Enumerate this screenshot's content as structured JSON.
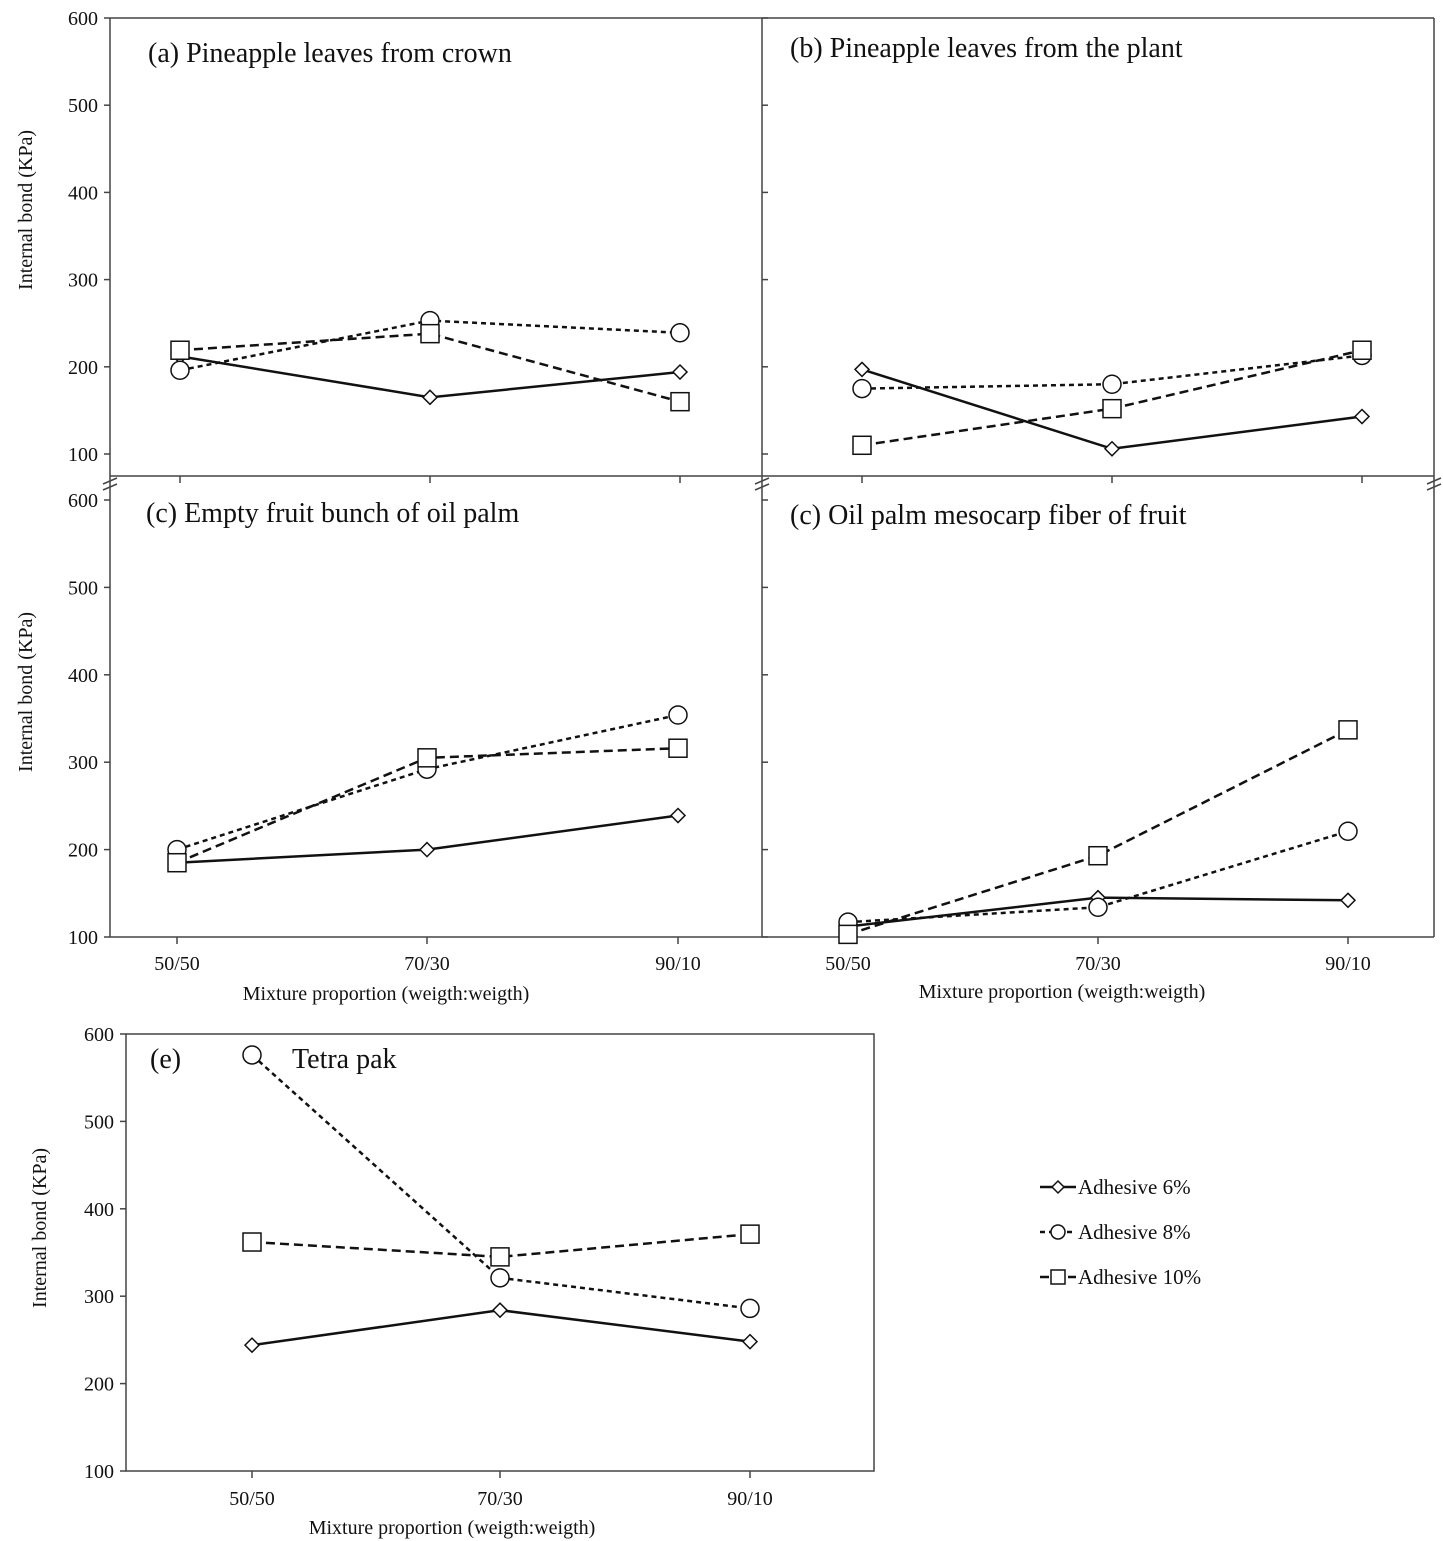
{
  "chart_data": [
    {
      "type": "line",
      "title": "(a) Pineapple leaves from crown",
      "ylabel": "Internal bond (KPa)",
      "xlabel": "",
      "categories": [
        "50/50",
        "70/30",
        "90/10"
      ],
      "ylim": [
        100,
        600
      ],
      "yticks": [
        "100",
        "200",
        "300",
        "400",
        "500",
        "600"
      ],
      "series": [
        {
          "name": "Adhesive 6%",
          "values": [
            212,
            165,
            194
          ]
        },
        {
          "name": "Adhesive 8%",
          "values": [
            196,
            253,
            239
          ]
        },
        {
          "name": "Adhesive 10%",
          "values": [
            219,
            238,
            160
          ]
        }
      ]
    },
    {
      "type": "line",
      "title": "(b) Pineapple leaves from the plant",
      "ylabel": "",
      "xlabel": "",
      "categories": [
        "50/50",
        "70/30",
        "90/10"
      ],
      "ylim": [
        100,
        600
      ],
      "yticks": [],
      "series": [
        {
          "name": "Adhesive 6%",
          "values": [
            197,
            106,
            143
          ]
        },
        {
          "name": "Adhesive 8%",
          "values": [
            175,
            180,
            213
          ]
        },
        {
          "name": "Adhesive 10%",
          "values": [
            110,
            152,
            219
          ]
        }
      ]
    },
    {
      "type": "line",
      "title": "(c) Empty fruit bunch of oil palm",
      "ylabel": "Internal bond (KPa)",
      "xlabel": "Mixture proportion (weigth:weigth)",
      "categories": [
        "50/50",
        "70/30",
        "90/10"
      ],
      "ylim": [
        100,
        600
      ],
      "yticks": [
        "100",
        "200",
        "300",
        "400",
        "500",
        "600"
      ],
      "series": [
        {
          "name": "Adhesive 6%",
          "values": [
            185,
            200,
            239
          ]
        },
        {
          "name": "Adhesive 8%",
          "values": [
            200,
            292,
            354
          ]
        },
        {
          "name": "Adhesive 10%",
          "values": [
            185,
            305,
            316
          ]
        }
      ]
    },
    {
      "type": "line",
      "title": "(c) Oil palm mesocarp fiber of fruit",
      "ylabel": "",
      "xlabel": "Mixture proportion (weigth:weigth)",
      "categories": [
        "50/50",
        "70/30",
        "90/10"
      ],
      "ylim": [
        100,
        600
      ],
      "yticks": [],
      "series": [
        {
          "name": "Adhesive 6%",
          "values": [
            112,
            145,
            142
          ]
        },
        {
          "name": "Adhesive 8%",
          "values": [
            117,
            134,
            221
          ]
        },
        {
          "name": "Adhesive 10%",
          "values": [
            103,
            193,
            337
          ]
        }
      ]
    },
    {
      "type": "line",
      "title": "(e)",
      "subtitle": "Tetra pak",
      "ylabel": "Internal bond (KPa)",
      "xlabel": "Mixture proportion (weigth:weigth)",
      "categories": [
        "50/50",
        "70/30",
        "90/10"
      ],
      "ylim": [
        100,
        600
      ],
      "yticks": [
        "100",
        "200",
        "300",
        "400",
        "500",
        "600"
      ],
      "series": [
        {
          "name": "Adhesive 6%",
          "values": [
            244,
            284,
            248
          ]
        },
        {
          "name": "Adhesive 8%",
          "values": [
            576,
            321,
            286
          ]
        },
        {
          "name": "Adhesive 10%",
          "values": [
            362,
            345,
            371
          ]
        }
      ]
    }
  ],
  "legend": {
    "placement": "right of panel (e)",
    "items": [
      "Adhesive 6%",
      "Adhesive 8%",
      "Adhesive 10%"
    ]
  }
}
